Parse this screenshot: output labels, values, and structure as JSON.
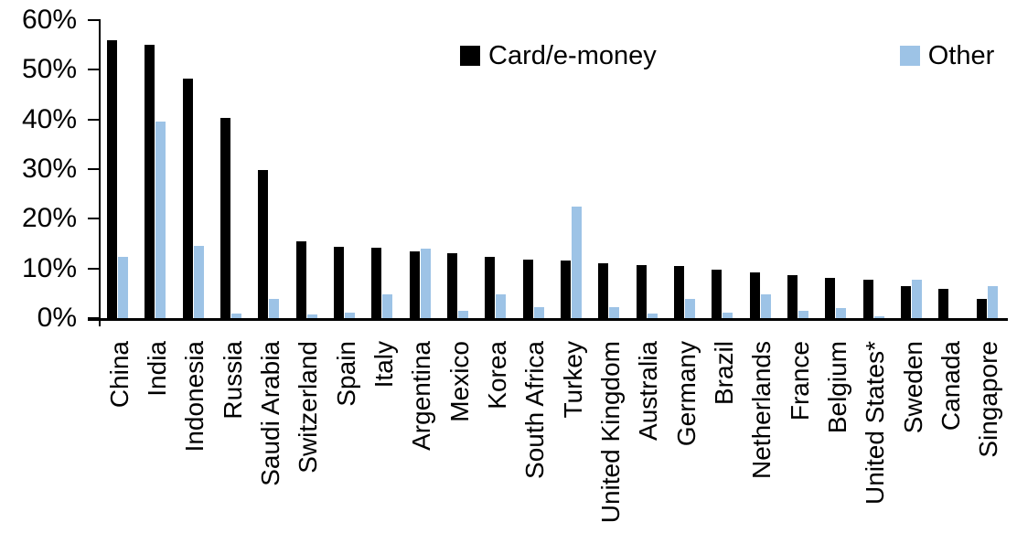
{
  "chart_data": {
    "type": "bar",
    "title": "",
    "xlabel": "",
    "ylabel": "",
    "ylim": [
      0,
      60
    ],
    "ytick_values": [
      0,
      10,
      20,
      30,
      40,
      50,
      60
    ],
    "ytick_labels": [
      "0%",
      "10%",
      "20%",
      "30%",
      "40%",
      "50%",
      "60%"
    ],
    "grid": false,
    "legend_position": "top-center",
    "categories": [
      "China",
      "India",
      "Indonesia",
      "Russia",
      "Saudi Arabia",
      "Switzerland",
      "Spain",
      "Italy",
      "Argentina",
      "Mexico",
      "Korea",
      "South Africa",
      "Turkey",
      "United Kingdom",
      "Australia",
      "Germany",
      "Brazil",
      "Netherlands",
      "France",
      "Belgium",
      "United States*",
      "Sweden",
      "Canada",
      "Singapore"
    ],
    "series": [
      {
        "name": "Card/e-money",
        "color": "#000000",
        "values": [
          56.0,
          55.0,
          48.2,
          40.3,
          29.8,
          15.5,
          14.3,
          14.2,
          13.4,
          13.1,
          12.3,
          11.7,
          11.6,
          11.0,
          10.7,
          10.5,
          9.8,
          9.2,
          8.6,
          8.1,
          7.8,
          6.4,
          5.8,
          3.8
        ]
      },
      {
        "name": "Other",
        "color": "#9DC3E6",
        "values": [
          12.3,
          39.5,
          14.5,
          1.0,
          3.9,
          0.8,
          1.1,
          4.7,
          13.9,
          1.4,
          4.7,
          2.3,
          22.5,
          2.3,
          1.0,
          3.8,
          1.1,
          4.8,
          1.5,
          2.0,
          0.3,
          7.8,
          0.0,
          6.5
        ]
      }
    ]
  }
}
